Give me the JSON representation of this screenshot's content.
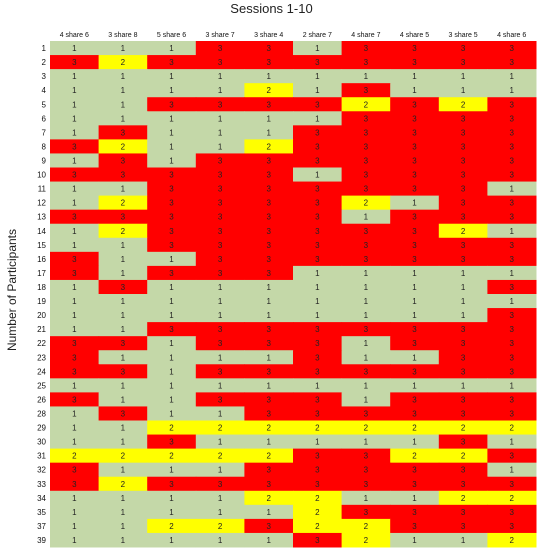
{
  "chart_data": {
    "type": "heatmap",
    "title": "Sessions 1-10",
    "ylabel": "Number of Participants",
    "xlabel": "",
    "columns": [
      "4 share 6",
      "3 share 8",
      "5 share 6",
      "3 share 7",
      "3 share 4",
      "2 share 7",
      "4 share 7",
      "4 share 5",
      "3 share 5",
      "4 share 6"
    ],
    "rows": [
      {
        "participant": "1",
        "values": [
          1,
          1,
          1,
          3,
          3,
          1,
          3,
          3,
          3,
          3
        ]
      },
      {
        "participant": "2",
        "values": [
          3,
          2,
          3,
          3,
          3,
          3,
          3,
          3,
          3,
          3
        ]
      },
      {
        "participant": "3",
        "values": [
          1,
          1,
          1,
          1,
          1,
          1,
          1,
          1,
          1,
          1
        ]
      },
      {
        "participant": "4",
        "values": [
          1,
          1,
          1,
          1,
          2,
          1,
          3,
          1,
          1,
          1
        ]
      },
      {
        "participant": "5",
        "values": [
          1,
          1,
          3,
          3,
          3,
          3,
          2,
          3,
          2,
          3
        ]
      },
      {
        "participant": "6",
        "values": [
          1,
          1,
          1,
          1,
          1,
          1,
          3,
          3,
          3,
          3
        ]
      },
      {
        "participant": "7",
        "values": [
          1,
          3,
          1,
          1,
          1,
          3,
          3,
          3,
          3,
          3
        ]
      },
      {
        "participant": "8",
        "values": [
          3,
          2,
          1,
          1,
          2,
          3,
          3,
          3,
          3,
          3
        ]
      },
      {
        "participant": "9",
        "values": [
          1,
          3,
          1,
          3,
          3,
          3,
          3,
          3,
          3,
          3
        ]
      },
      {
        "participant": "10",
        "values": [
          3,
          3,
          3,
          3,
          3,
          1,
          3,
          3,
          3,
          3
        ]
      },
      {
        "participant": "11",
        "values": [
          1,
          1,
          3,
          3,
          3,
          3,
          3,
          3,
          3,
          1
        ]
      },
      {
        "participant": "12",
        "values": [
          1,
          2,
          3,
          3,
          3,
          3,
          2,
          1,
          3,
          3
        ]
      },
      {
        "participant": "13",
        "values": [
          3,
          3,
          3,
          3,
          3,
          3,
          1,
          3,
          3,
          3
        ]
      },
      {
        "participant": "14",
        "values": [
          1,
          2,
          3,
          3,
          3,
          3,
          3,
          3,
          2,
          1
        ]
      },
      {
        "participant": "15",
        "values": [
          1,
          1,
          3,
          3,
          3,
          3,
          3,
          3,
          3,
          3
        ]
      },
      {
        "participant": "16",
        "values": [
          3,
          1,
          1,
          3,
          3,
          3,
          3,
          3,
          3,
          3
        ]
      },
      {
        "participant": "17",
        "values": [
          3,
          1,
          3,
          3,
          3,
          1,
          1,
          1,
          1,
          1
        ]
      },
      {
        "participant": "18",
        "values": [
          1,
          3,
          1,
          1,
          1,
          1,
          1,
          1,
          1,
          3
        ]
      },
      {
        "participant": "19",
        "values": [
          1,
          1,
          1,
          1,
          1,
          1,
          1,
          1,
          1,
          1
        ]
      },
      {
        "participant": "20",
        "values": [
          1,
          1,
          1,
          1,
          1,
          1,
          1,
          1,
          1,
          3
        ]
      },
      {
        "participant": "21",
        "values": [
          1,
          1,
          3,
          3,
          3,
          3,
          3,
          3,
          3,
          3
        ]
      },
      {
        "participant": "22",
        "values": [
          3,
          3,
          1,
          3,
          3,
          3,
          1,
          3,
          3,
          3
        ]
      },
      {
        "participant": "23",
        "values": [
          3,
          1,
          1,
          1,
          1,
          3,
          1,
          1,
          3,
          3
        ]
      },
      {
        "participant": "24",
        "values": [
          3,
          3,
          1,
          3,
          3,
          3,
          3,
          3,
          3,
          3
        ]
      },
      {
        "participant": "25",
        "values": [
          1,
          1,
          1,
          1,
          1,
          1,
          1,
          1,
          1,
          1
        ]
      },
      {
        "participant": "26",
        "values": [
          3,
          1,
          1,
          3,
          3,
          3,
          1,
          3,
          3,
          3
        ]
      },
      {
        "participant": "28",
        "values": [
          1,
          3,
          1,
          1,
          3,
          3,
          3,
          3,
          3,
          3
        ]
      },
      {
        "participant": "29",
        "values": [
          1,
          1,
          2,
          2,
          2,
          2,
          2,
          2,
          2,
          2
        ]
      },
      {
        "participant": "30",
        "values": [
          1,
          1,
          3,
          1,
          1,
          1,
          1,
          1,
          3,
          1
        ]
      },
      {
        "participant": "31",
        "values": [
          2,
          2,
          2,
          2,
          2,
          3,
          3,
          2,
          2,
          3
        ]
      },
      {
        "participant": "32",
        "values": [
          3,
          1,
          1,
          1,
          3,
          3,
          3,
          3,
          3,
          1
        ]
      },
      {
        "participant": "33",
        "values": [
          3,
          2,
          3,
          3,
          3,
          3,
          3,
          3,
          3,
          3
        ]
      },
      {
        "participant": "34",
        "values": [
          1,
          1,
          1,
          1,
          2,
          2,
          1,
          1,
          2,
          2
        ]
      },
      {
        "participant": "35",
        "values": [
          1,
          1,
          1,
          1,
          1,
          2,
          3,
          3,
          3,
          3
        ]
      },
      {
        "participant": "37",
        "values": [
          1,
          1,
          2,
          2,
          3,
          2,
          2,
          3,
          3,
          3
        ]
      },
      {
        "participant": "39",
        "values": [
          1,
          1,
          1,
          1,
          1,
          3,
          2,
          1,
          1,
          2
        ]
      }
    ],
    "colors": {
      "1": "#c4d8a8",
      "2": "#ffff00",
      "3": "#ff0000"
    },
    "grid": false,
    "legend": "none"
  }
}
